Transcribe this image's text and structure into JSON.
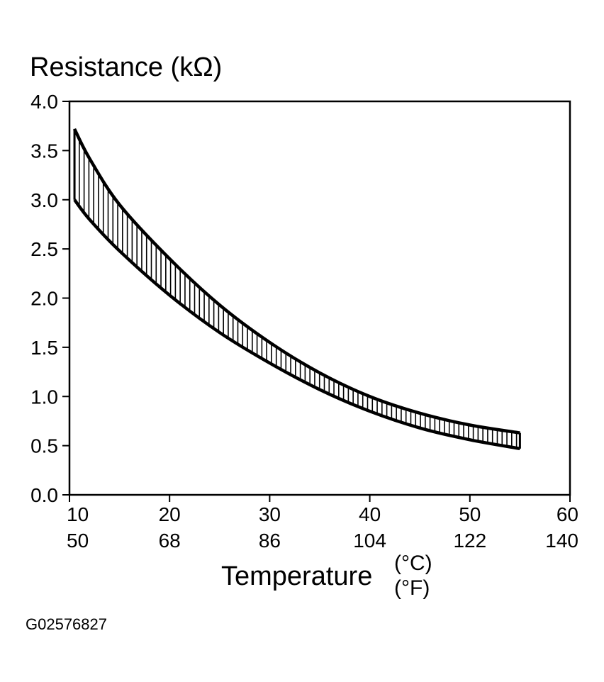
{
  "chart_data": {
    "type": "area",
    "ylabel": "Resistance (kΩ)",
    "xlabel": "Temperature",
    "xunit_c": "(°C)",
    "xunit_f": "(°F)",
    "figure_id": "G02576827",
    "xlim": [
      10,
      60
    ],
    "ylim": [
      0,
      4
    ],
    "y_ticks": [
      "0.0",
      "0.5",
      "1.0",
      "1.5",
      "2.0",
      "2.5",
      "3.0",
      "3.5",
      "4.0"
    ],
    "x_ticks_c": [
      "10",
      "20",
      "30",
      "40",
      "50",
      "60"
    ],
    "x_ticks_f": [
      "50",
      "68",
      "86",
      "104",
      "122",
      "140"
    ],
    "grid": false,
    "band_fill": "vertical-hatch",
    "series": [
      {
        "x": [
          10.5,
          12,
          15,
          20,
          25,
          30,
          35,
          40,
          45,
          50,
          55
        ],
        "values": [
          3.72,
          3.42,
          2.95,
          2.4,
          1.93,
          1.55,
          1.24,
          1.0,
          0.83,
          0.71,
          0.63
        ]
      },
      {
        "x": [
          10.5,
          12,
          15,
          20,
          25,
          30,
          35,
          40,
          45,
          50,
          55
        ],
        "values": [
          3.0,
          2.8,
          2.48,
          2.03,
          1.65,
          1.34,
          1.07,
          0.85,
          0.68,
          0.56,
          0.47
        ]
      }
    ]
  }
}
